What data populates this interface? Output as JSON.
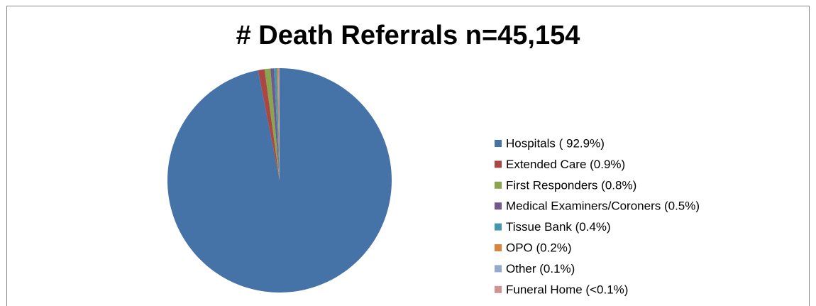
{
  "chart_data": {
    "type": "pie",
    "title": "# Death Referrals n=45,154",
    "categories": [
      "Hospitals ( 92.9%)",
      "Extended Care (0.9%)",
      "First Responders (0.8%)",
      "Medical Examiners/Coroners (0.5%)",
      "Tissue Bank (0.4%)",
      "OPO (0.2%)",
      "Other (0.1%)",
      "Funeral Home  (<0.1%)"
    ],
    "values": [
      92.9,
      0.9,
      0.8,
      0.5,
      0.4,
      0.2,
      0.1,
      0.05
    ],
    "colors": [
      "#4572A7",
      "#AA4643",
      "#89A54E",
      "#71588F",
      "#4198AF",
      "#DB843D",
      "#93A9CF",
      "#D19392"
    ],
    "legend": "right"
  }
}
